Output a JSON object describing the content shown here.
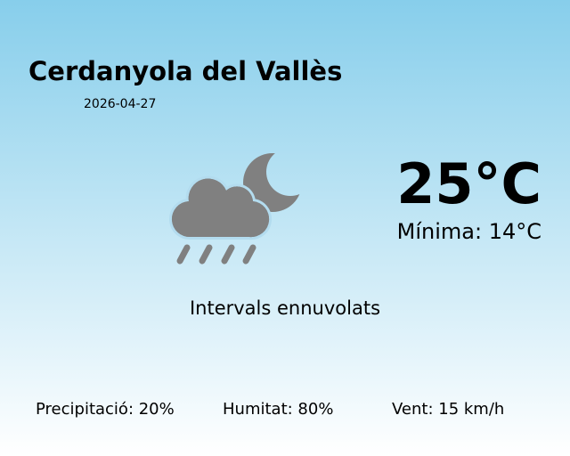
{
  "location": "Cerdanyola del Vallès",
  "date": "2026-04-27",
  "temperature": "25°C",
  "minimum": "Mínima: 14°C",
  "condition": "Intervals ennuvolats",
  "icon": "cloud-rain-moon-icon",
  "icon_color": "#808080",
  "stats": {
    "precipitation": "Precipitació: 20%",
    "humidity": "Humitat: 80%",
    "wind": "Vent: 15 km/h"
  },
  "colors": {
    "sky_top": "#87ceeb",
    "sky_bottom": "#ffffff"
  }
}
